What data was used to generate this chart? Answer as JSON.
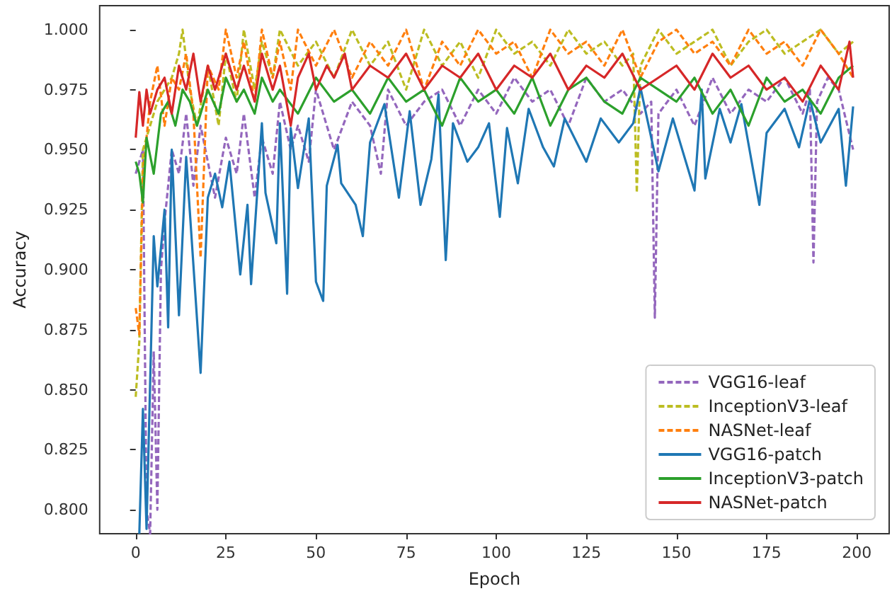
{
  "chart_data": {
    "type": "line",
    "xlabel": "Epoch",
    "ylabel": "Accuracy",
    "xlim": [
      -10,
      209
    ],
    "xticks": [
      0,
      25,
      50,
      75,
      100,
      125,
      150,
      175,
      200
    ],
    "ylim": [
      0.79,
      1.01
    ],
    "yticks": [
      {
        "value": 0.8,
        "label": "0.800"
      },
      {
        "value": 0.825,
        "label": "0.825"
      },
      {
        "value": 0.85,
        "label": "0.850"
      },
      {
        "value": 0.875,
        "label": "0.875"
      },
      {
        "value": 0.9,
        "label": "0.900"
      },
      {
        "value": 0.925,
        "label": "0.925"
      },
      {
        "value": 0.95,
        "label": "0.950"
      },
      {
        "value": 0.975,
        "label": "0.975"
      },
      {
        "value": 1.0,
        "label": "1.000"
      }
    ],
    "grid": false,
    "legend": "bottom right",
    "marker": "none",
    "series": [
      {
        "name": "VGG16-leaf",
        "color": "#9467bd",
        "line_style": "dashed",
        "x": [
          0,
          2,
          3,
          4,
          5,
          6,
          7,
          8,
          10,
          12,
          14,
          16,
          18,
          20,
          22,
          25,
          28,
          30,
          33,
          35,
          38,
          40,
          43,
          45,
          48,
          50,
          55,
          60,
          65,
          68,
          70,
          75,
          80,
          85,
          90,
          95,
          100,
          105,
          110,
          115,
          120,
          125,
          130,
          135,
          140,
          143,
          144,
          145,
          150,
          155,
          160,
          165,
          170,
          175,
          180,
          185,
          187,
          188,
          189,
          192,
          195,
          199
        ],
        "values": [
          0.94,
          0.95,
          0.8,
          0.79,
          0.866,
          0.8,
          0.9,
          0.92,
          0.95,
          0.94,
          0.965,
          0.935,
          0.96,
          0.945,
          0.93,
          0.955,
          0.94,
          0.965,
          0.93,
          0.955,
          0.94,
          0.97,
          0.95,
          0.96,
          0.945,
          0.975,
          0.95,
          0.97,
          0.96,
          0.94,
          0.975,
          0.96,
          0.97,
          0.975,
          0.96,
          0.975,
          0.965,
          0.98,
          0.97,
          0.975,
          0.96,
          0.98,
          0.97,
          0.975,
          0.965,
          0.97,
          0.88,
          0.965,
          0.975,
          0.96,
          0.98,
          0.965,
          0.975,
          0.97,
          0.98,
          0.965,
          0.975,
          0.903,
          0.97,
          0.98,
          0.975,
          0.95
        ]
      },
      {
        "name": "InceptionV3-leaf",
        "color": "#bcbd22",
        "line_style": "dashed",
        "x": [
          0,
          1,
          2,
          4,
          6,
          8,
          10,
          12,
          13,
          15,
          17,
          20,
          23,
          25,
          28,
          30,
          33,
          35,
          38,
          40,
          45,
          50,
          55,
          60,
          65,
          70,
          75,
          80,
          85,
          90,
          95,
          100,
          105,
          110,
          115,
          120,
          125,
          130,
          135,
          138,
          139,
          140,
          145,
          150,
          155,
          160,
          165,
          170,
          175,
          180,
          185,
          190,
          195,
          199
        ],
        "values": [
          0.847,
          0.87,
          0.95,
          0.96,
          0.97,
          0.975,
          0.98,
          0.99,
          1.0,
          0.975,
          0.96,
          0.985,
          0.96,
          0.99,
          0.97,
          1.0,
          0.975,
          0.995,
          0.98,
          1.0,
          0.985,
          0.995,
          0.98,
          1.0,
          0.985,
          0.995,
          0.975,
          1.0,
          0.985,
          0.995,
          0.98,
          1.0,
          0.99,
          0.995,
          0.985,
          1.0,
          0.99,
          0.995,
          0.985,
          0.99,
          0.932,
          0.985,
          1.0,
          0.99,
          0.995,
          1.0,
          0.985,
          0.995,
          1.0,
          0.99,
          0.995,
          1.0,
          0.99,
          0.995
        ]
      },
      {
        "name": "NASNet-leaf",
        "color": "#ff7f0e",
        "line_style": "dashed",
        "x": [
          0,
          1,
          2,
          4,
          6,
          8,
          10,
          12,
          14,
          16,
          18,
          20,
          23,
          25,
          28,
          30,
          33,
          35,
          38,
          40,
          43,
          45,
          50,
          55,
          60,
          65,
          70,
          75,
          80,
          85,
          90,
          95,
          100,
          105,
          110,
          115,
          120,
          125,
          130,
          135,
          140,
          145,
          150,
          155,
          160,
          165,
          170,
          175,
          180,
          185,
          190,
          195,
          199
        ],
        "values": [
          0.884,
          0.873,
          0.94,
          0.97,
          0.985,
          0.96,
          0.98,
          0.975,
          0.99,
          0.965,
          0.905,
          0.985,
          0.975,
          1.0,
          0.98,
          0.995,
          0.97,
          1.0,
          0.98,
          0.995,
          0.975,
          1.0,
          0.985,
          1.0,
          0.98,
          0.995,
          0.985,
          1.0,
          0.975,
          0.995,
          0.985,
          1.0,
          0.99,
          0.995,
          0.98,
          1.0,
          0.99,
          0.995,
          0.985,
          1.0,
          0.98,
          0.995,
          1.0,
          0.99,
          0.995,
          0.985,
          1.0,
          0.99,
          0.995,
          0.985,
          1.0,
          0.99,
          0.98
        ]
      },
      {
        "name": "VGG16-patch",
        "color": "#1f77b4",
        "line_style": "solid",
        "x": [
          1,
          2,
          3,
          5,
          6,
          8,
          9,
          10,
          12,
          14,
          18,
          20,
          22,
          24,
          26,
          29,
          31,
          32,
          35,
          36,
          39,
          40,
          42,
          43,
          45,
          48,
          50,
          52,
          53,
          56,
          57,
          61,
          63,
          65,
          69,
          73,
          76,
          79,
          82,
          84,
          86,
          88,
          92,
          95,
          98,
          101,
          103,
          106,
          109,
          113,
          116,
          119,
          125,
          129,
          134,
          138,
          140,
          145,
          149,
          155,
          157,
          158,
          162,
          165,
          168,
          173,
          175,
          180,
          184,
          187,
          190,
          195,
          197,
          199
        ],
        "values": [
          0.79,
          0.842,
          0.792,
          0.914,
          0.893,
          0.925,
          0.876,
          0.95,
          0.881,
          0.947,
          0.857,
          0.93,
          0.94,
          0.926,
          0.945,
          0.898,
          0.927,
          0.894,
          0.961,
          0.932,
          0.911,
          0.961,
          0.89,
          0.959,
          0.934,
          0.963,
          0.895,
          0.887,
          0.935,
          0.952,
          0.936,
          0.927,
          0.914,
          0.953,
          0.969,
          0.93,
          0.966,
          0.927,
          0.946,
          0.973,
          0.904,
          0.961,
          0.945,
          0.951,
          0.961,
          0.922,
          0.959,
          0.936,
          0.967,
          0.951,
          0.943,
          0.963,
          0.945,
          0.963,
          0.953,
          0.961,
          0.976,
          0.941,
          0.963,
          0.933,
          0.975,
          0.938,
          0.967,
          0.953,
          0.969,
          0.927,
          0.957,
          0.967,
          0.951,
          0.971,
          0.953,
          0.967,
          0.935,
          0.968
        ]
      },
      {
        "name": "InceptionV3-patch",
        "color": "#2ca02c",
        "line_style": "solid",
        "x": [
          0,
          1,
          2,
          3,
          5,
          7,
          9,
          11,
          13,
          15,
          17,
          20,
          23,
          25,
          28,
          30,
          33,
          35,
          38,
          40,
          45,
          50,
          55,
          60,
          65,
          70,
          75,
          80,
          85,
          90,
          95,
          100,
          105,
          110,
          115,
          120,
          125,
          130,
          135,
          140,
          145,
          150,
          155,
          160,
          165,
          170,
          175,
          180,
          185,
          190,
          195,
          199
        ],
        "values": [
          0.945,
          0.94,
          0.928,
          0.955,
          0.94,
          0.965,
          0.97,
          0.96,
          0.975,
          0.97,
          0.96,
          0.975,
          0.965,
          0.98,
          0.97,
          0.975,
          0.965,
          0.98,
          0.97,
          0.975,
          0.965,
          0.98,
          0.97,
          0.975,
          0.965,
          0.98,
          0.97,
          0.975,
          0.96,
          0.98,
          0.97,
          0.975,
          0.965,
          0.98,
          0.96,
          0.975,
          0.98,
          0.97,
          0.965,
          0.98,
          0.975,
          0.97,
          0.98,
          0.965,
          0.975,
          0.96,
          0.98,
          0.97,
          0.975,
          0.965,
          0.98,
          0.985
        ]
      },
      {
        "name": "NASNet-patch",
        "color": "#d62728",
        "line_style": "solid",
        "x": [
          0,
          1,
          2,
          3,
          4,
          6,
          8,
          10,
          12,
          14,
          16,
          18,
          20,
          22,
          25,
          28,
          30,
          33,
          35,
          38,
          40,
          43,
          45,
          48,
          50,
          53,
          55,
          58,
          60,
          65,
          70,
          75,
          80,
          85,
          90,
          95,
          100,
          105,
          110,
          115,
          120,
          125,
          130,
          135,
          140,
          145,
          150,
          155,
          160,
          165,
          170,
          175,
          180,
          185,
          190,
          195,
          198,
          199
        ],
        "values": [
          0.955,
          0.974,
          0.96,
          0.975,
          0.965,
          0.975,
          0.98,
          0.965,
          0.985,
          0.975,
          0.99,
          0.97,
          0.985,
          0.975,
          0.99,
          0.975,
          0.985,
          0.97,
          0.99,
          0.975,
          0.985,
          0.96,
          0.98,
          0.99,
          0.975,
          0.985,
          0.98,
          0.99,
          0.975,
          0.985,
          0.98,
          0.99,
          0.975,
          0.985,
          0.98,
          0.99,
          0.975,
          0.985,
          0.98,
          0.99,
          0.975,
          0.985,
          0.98,
          0.99,
          0.975,
          0.98,
          0.985,
          0.975,
          0.99,
          0.98,
          0.985,
          0.975,
          0.98,
          0.97,
          0.985,
          0.975,
          0.995,
          0.98
        ]
      }
    ]
  }
}
